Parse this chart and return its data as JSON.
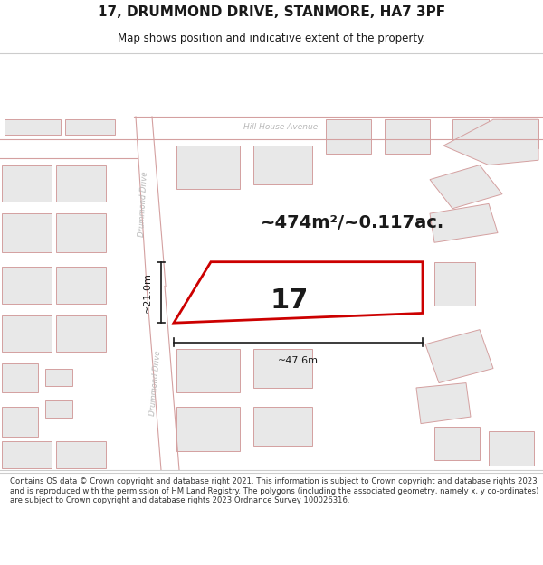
{
  "title_line1": "17, DRUMMOND DRIVE, STANMORE, HA7 3PF",
  "title_line2": "Map shows position and indicative extent of the property.",
  "area_text": "~474m²/~0.117ac.",
  "label_17": "17",
  "dim_width": "~47.6m",
  "dim_height": "~21.0m",
  "footer_text": "Contains OS data © Crown copyright and database right 2021. This information is subject to Crown copyright and database rights 2023 and is reproduced with the permission of HM Land Registry. The polygons (including the associated geometry, namely x, y co-ordinates) are subject to Crown copyright and database rights 2023 Ordnance Survey 100026316.",
  "map_bg": "#ffffff",
  "road_fill": "#ffffff",
  "bldg_fill": "#e8e8e8",
  "bldg_edge": "#d4a0a0",
  "road_edge": "#d4a0a0",
  "hl_fill": "#ffffff",
  "hl_edge": "#cc0000",
  "road_label_color": "#b8b8b8",
  "title_color": "#1a1a1a",
  "area_color": "#1a1a1a",
  "footer_color": "#333333",
  "dim_color": "#1a1a1a",
  "title_fontsize": 11,
  "subtitle_fontsize": 8.5,
  "area_fontsize": 14,
  "num_fontsize": 22,
  "dim_fontsize": 8,
  "road_fontsize": 6
}
